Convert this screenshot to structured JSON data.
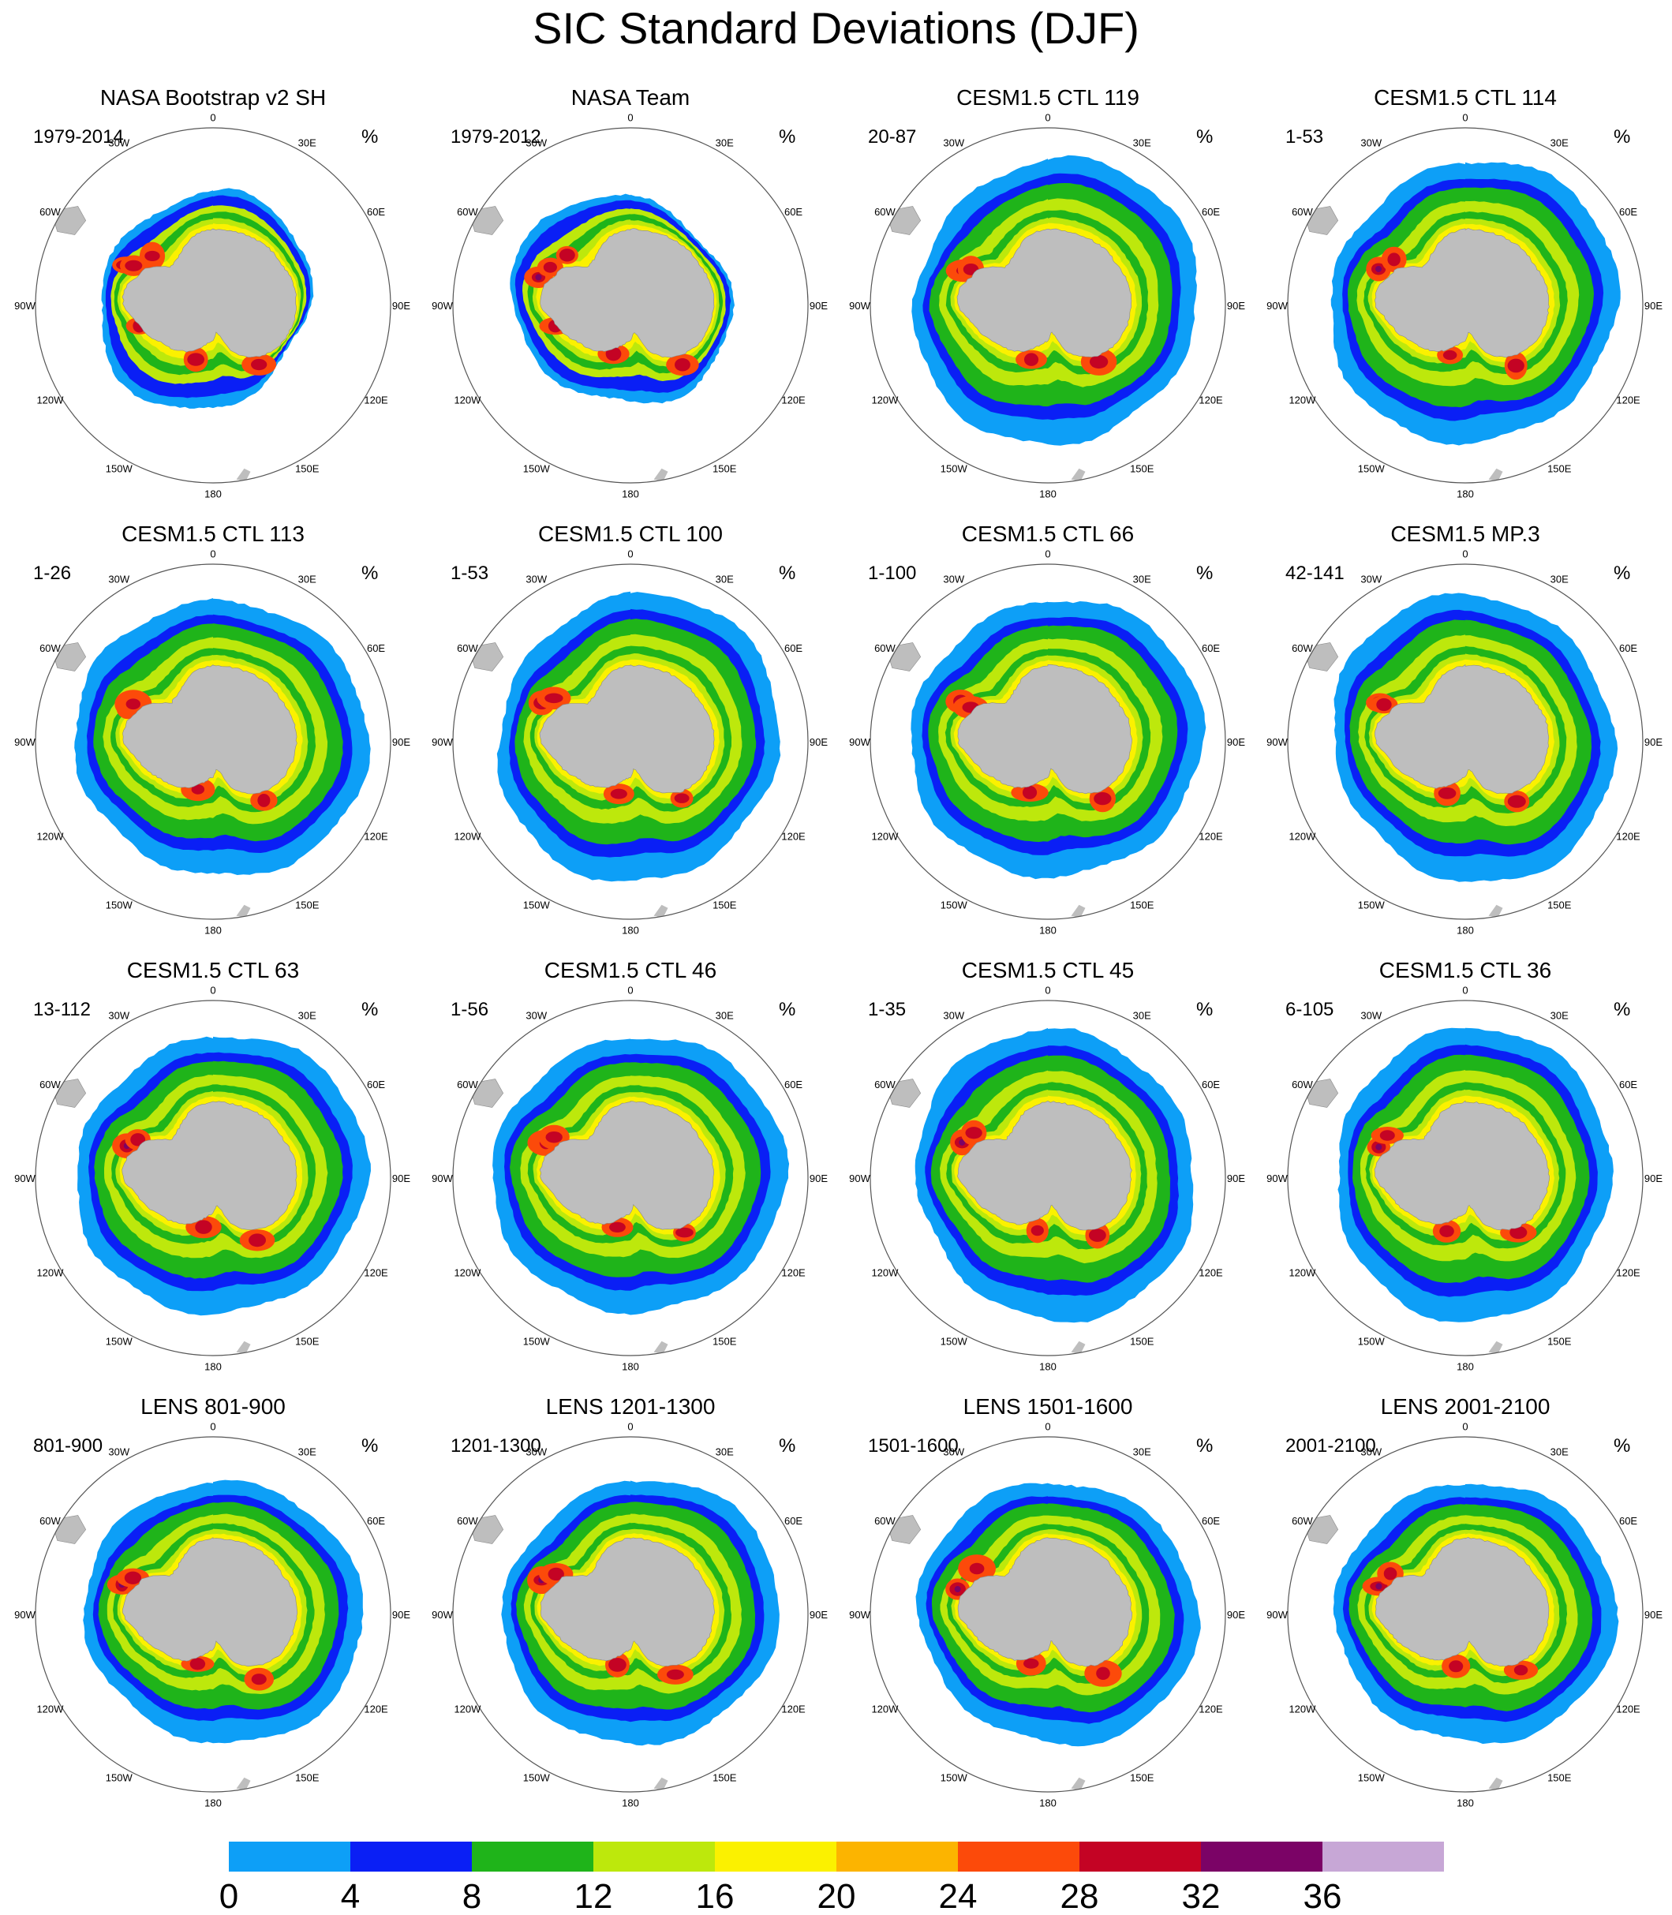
{
  "title": "SIC Standard Deviations (DJF)",
  "units": "%",
  "lon_labels": [
    "0",
    "30E",
    "60E",
    "90E",
    "120E",
    "150E",
    "180",
    "150W",
    "120W",
    "90W",
    "60W",
    "30W"
  ],
  "panels": [
    {
      "title": "NASA Bootstrap v2 SH",
      "period": "1979-2014",
      "kind": "obs"
    },
    {
      "title": "NASA Team",
      "period": "1979-2012",
      "kind": "obs"
    },
    {
      "title": "CESM1.5 CTL 119",
      "period": "20-87",
      "kind": "model"
    },
    {
      "title": "CESM1.5 CTL 114",
      "period": "1-53",
      "kind": "model"
    },
    {
      "title": "CESM1.5 CTL 113",
      "period": "1-26",
      "kind": "model"
    },
    {
      "title": "CESM1.5 CTL 100",
      "period": "1-53",
      "kind": "model"
    },
    {
      "title": "CESM1.5 CTL 66",
      "period": "1-100",
      "kind": "model"
    },
    {
      "title": "CESM1.5 MP.3",
      "period": "42-141",
      "kind": "model"
    },
    {
      "title": "CESM1.5 CTL 63",
      "period": "13-112",
      "kind": "model"
    },
    {
      "title": "CESM1.5 CTL 46",
      "period": "1-56",
      "kind": "model"
    },
    {
      "title": "CESM1.5 CTL 45",
      "period": "1-35",
      "kind": "model"
    },
    {
      "title": "CESM1.5 CTL 36",
      "period": "6-105",
      "kind": "model"
    },
    {
      "title": "LENS 801-900",
      "period": "801-900",
      "kind": "lens"
    },
    {
      "title": "LENS 1201-1300",
      "period": "1201-1300",
      "kind": "lens"
    },
    {
      "title": "LENS 1501-1600",
      "period": "1501-1600",
      "kind": "lens"
    },
    {
      "title": "LENS 2001-2100",
      "period": "2001-2100",
      "kind": "lens"
    }
  ],
  "colorbar": {
    "ticks": [
      "0",
      "4",
      "8",
      "12",
      "16",
      "20",
      "24",
      "28",
      "32",
      "36"
    ],
    "colors": [
      "#0d9ff7",
      "#0a1ff5",
      "#1fb41a",
      "#bde80c",
      "#fbf100",
      "#fcb400",
      "#fc4a0a",
      "#c40324",
      "#7b0366",
      "#c7a7d6"
    ]
  },
  "land_color": "#bebebe"
}
